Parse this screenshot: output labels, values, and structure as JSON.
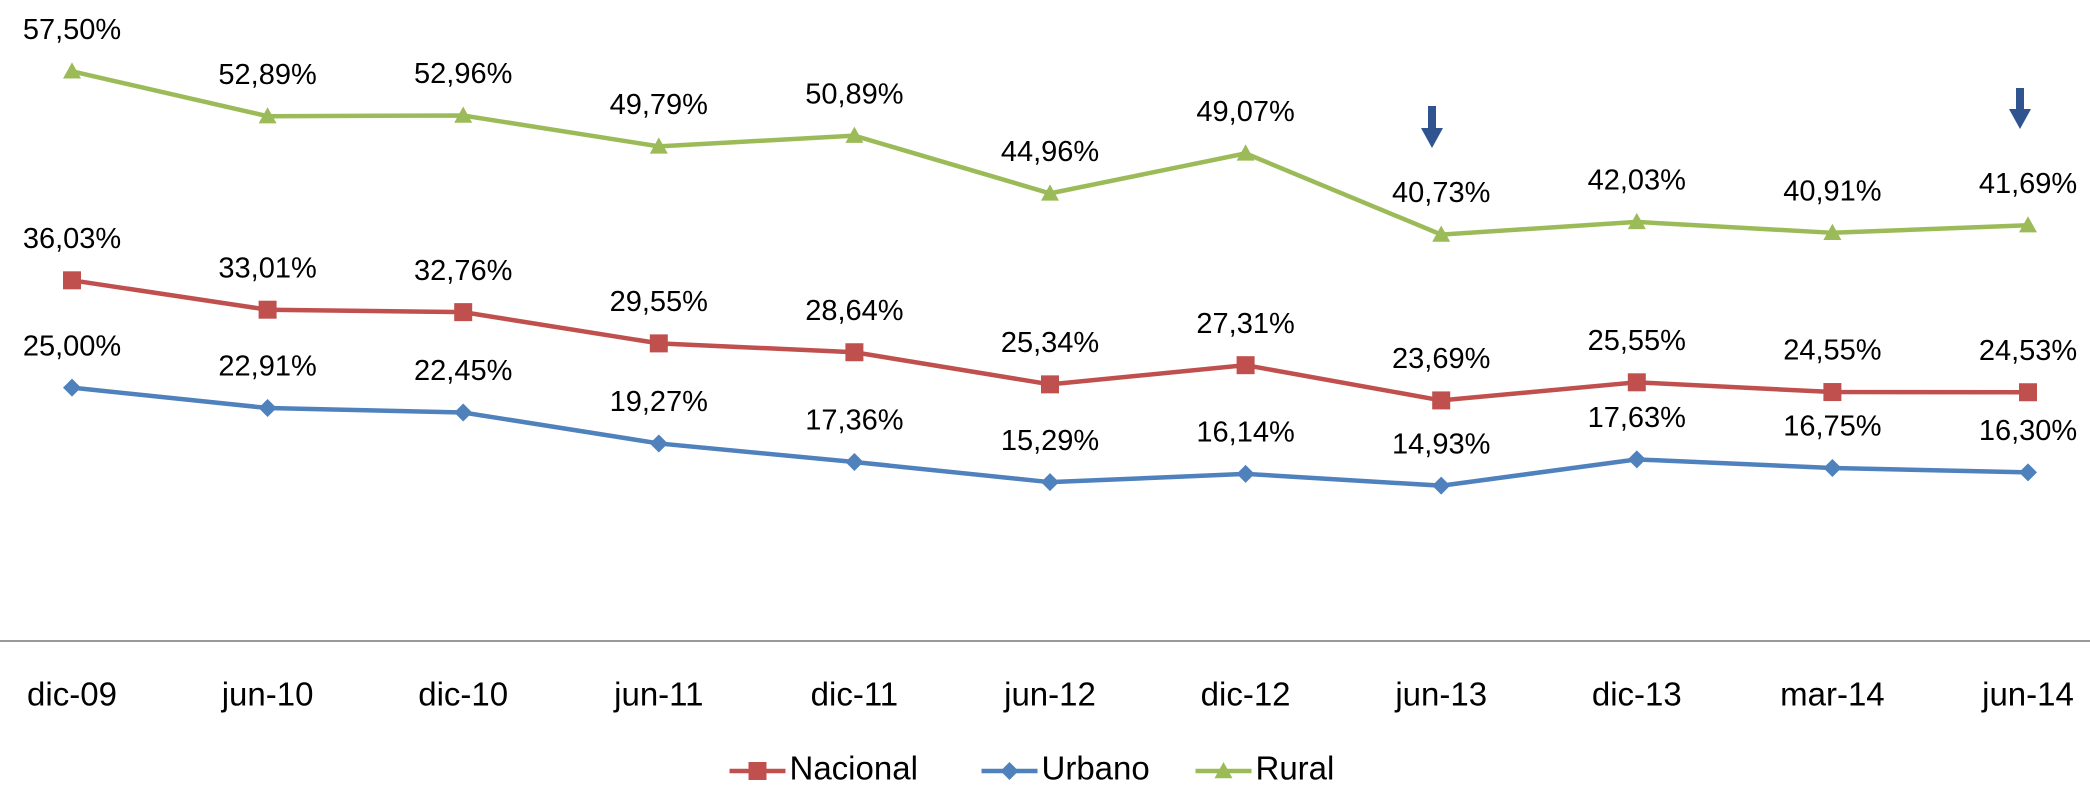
{
  "chart_data": {
    "type": "line",
    "categories": [
      "dic-09",
      "jun-10",
      "dic-10",
      "jun-11",
      "dic-11",
      "jun-12",
      "dic-12",
      "jun-13",
      "dic-13",
      "mar-14",
      "jun-14"
    ],
    "series": [
      {
        "name": "Nacional",
        "color": "#c0504d",
        "marker": "square",
        "values": [
          36.03,
          33.01,
          32.76,
          29.55,
          28.64,
          25.34,
          27.31,
          23.69,
          25.55,
          24.55,
          24.53
        ],
        "value_labels": [
          "36,03%",
          "33,01%",
          "32,76%",
          "29,55%",
          "28,64%",
          "25,34%",
          "27,31%",
          "23,69%",
          "25,55%",
          "24,55%",
          "24,53%"
        ]
      },
      {
        "name": "Urbano",
        "color": "#4f81bd",
        "marker": "diamond",
        "values": [
          25.0,
          22.91,
          22.45,
          19.27,
          17.36,
          15.29,
          16.14,
          14.93,
          17.63,
          16.75,
          16.3
        ],
        "value_labels": [
          "25,00%",
          "22,91%",
          "22,45%",
          "19,27%",
          "17,36%",
          "15,29%",
          "16,14%",
          "14,93%",
          "17,63%",
          "16,75%",
          "16,30%"
        ]
      },
      {
        "name": "Rural",
        "color": "#9bbb59",
        "marker": "triangle",
        "values": [
          57.5,
          52.89,
          52.96,
          49.79,
          50.89,
          44.96,
          49.07,
          40.73,
          42.03,
          40.91,
          41.69
        ],
        "value_labels": [
          "57,50%",
          "52,89%",
          "52,96%",
          "49,79%",
          "50,89%",
          "44,96%",
          "49,07%",
          "40,73%",
          "42,03%",
          "40,91%",
          "41,69%"
        ]
      }
    ],
    "ylim": [
      0,
      60
    ],
    "grid": false,
    "legend": "bottom"
  }
}
